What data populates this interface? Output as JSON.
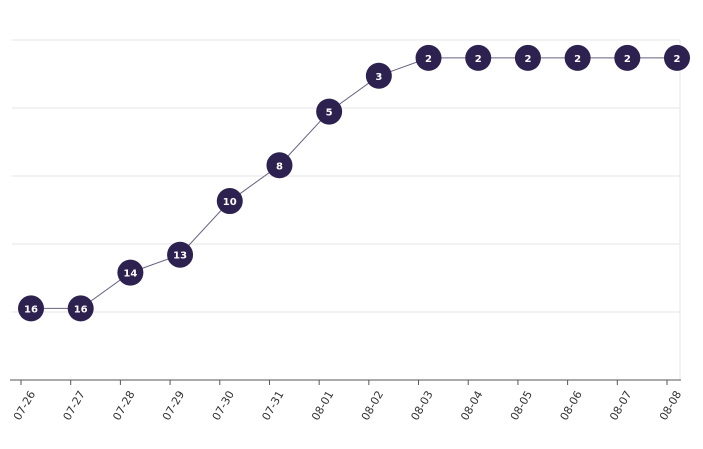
{
  "chart_data": {
    "type": "line",
    "categories": [
      "07-26",
      "07-27",
      "07-28",
      "07-29",
      "07-30",
      "07-31",
      "08-01",
      "08-02",
      "08-03",
      "08-04",
      "08-05",
      "08-06",
      "08-07",
      "08-08"
    ],
    "values": [
      16,
      16,
      14,
      13,
      10,
      8,
      5,
      3,
      2,
      2,
      2,
      2,
      2,
      2
    ],
    "color": "#2d2150",
    "ylim": [
      20,
      1
    ]
  }
}
